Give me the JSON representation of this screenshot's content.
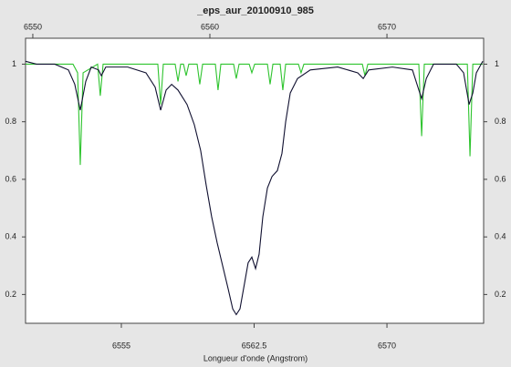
{
  "chart_data": {
    "type": "line",
    "title": "_eps_aur_20100910_985",
    "x_label": "Longueur d'onde (Angstrom)",
    "xlim": [
      6549.59,
      6575.46
    ],
    "ylim": [
      0.1,
      1.09
    ],
    "xticks": [
      6555,
      6562.5,
      6570
    ],
    "x2ticks": [
      6550,
      6560,
      6570
    ],
    "yticks": [
      0.2,
      0.4,
      0.6,
      0.8,
      1
    ],
    "y2lim": [
      0.1,
      1.09
    ],
    "y2ticks": [
      0.2,
      0.4,
      0.6,
      0.8,
      1
    ],
    "series": [
      {
        "color": "#101030",
        "x": [
          6549.59,
          6550.21,
          6551.24,
          6552.01,
          6552.37,
          6552.68,
          6552.99,
          6553.3,
          6553.71,
          6553.87,
          6554.12,
          6555.36,
          6556.39,
          6556.91,
          6557.22,
          6557.53,
          6557.84,
          6558.2,
          6558.71,
          6559.12,
          6559.48,
          6559.79,
          6560.1,
          6560.41,
          6560.72,
          6561.03,
          6561.29,
          6561.49,
          6561.7,
          6561.96,
          6562.16,
          6562.37,
          6562.58,
          6562.78,
          6562.99,
          6563.25,
          6563.51,
          6563.81,
          6564.07,
          6564.28,
          6564.54,
          6564.95,
          6565.67,
          6567.22,
          6568.35,
          6568.66,
          6568.97,
          6570.31,
          6571.44,
          6571.75,
          6571.96,
          6572.22,
          6572.63,
          6573.92,
          6574.33,
          6574.64,
          6574.85,
          6575.05,
          6575.41
        ],
        "values": [
          1.01,
          1.0,
          1.0,
          0.98,
          0.93,
          0.84,
          0.94,
          0.99,
          0.98,
          0.96,
          0.99,
          0.99,
          0.97,
          0.92,
          0.84,
          0.91,
          0.93,
          0.91,
          0.86,
          0.79,
          0.7,
          0.58,
          0.47,
          0.38,
          0.3,
          0.22,
          0.15,
          0.13,
          0.15,
          0.24,
          0.31,
          0.33,
          0.29,
          0.34,
          0.47,
          0.57,
          0.61,
          0.63,
          0.69,
          0.8,
          0.9,
          0.95,
          0.98,
          0.99,
          0.97,
          0.95,
          0.98,
          0.99,
          0.98,
          0.92,
          0.88,
          0.95,
          1.0,
          1.0,
          0.97,
          0.86,
          0.9,
          0.97,
          1.01
        ]
      },
      {
        "color": "#2fc42f",
        "x": [
          6549.59,
          6552.27,
          6552.53,
          6552.68,
          6552.84,
          6553.66,
          6553.81,
          6553.97,
          6557.06,
          6557.22,
          6557.37,
          6558.04,
          6558.2,
          6558.35,
          6558.51,
          6558.66,
          6558.81,
          6559.28,
          6559.43,
          6559.59,
          6560.31,
          6560.46,
          6560.62,
          6561.34,
          6561.49,
          6561.65,
          6562.22,
          6562.37,
          6562.53,
          6563.25,
          6563.4,
          6563.56,
          6563.97,
          6564.12,
          6564.28,
          6565.0,
          6565.15,
          6565.31,
          6568.61,
          6568.76,
          6568.92,
          6571.8,
          6571.96,
          6572.11,
          6574.54,
          6574.69,
          6574.85,
          6575.41
        ],
        "values": [
          1.0,
          1.0,
          0.97,
          0.65,
          0.97,
          1.0,
          0.89,
          1.0,
          1.0,
          0.86,
          1.0,
          1.0,
          0.94,
          1.0,
          1.0,
          0.96,
          1.0,
          1.0,
          0.93,
          1.0,
          1.0,
          0.91,
          1.0,
          1.0,
          0.95,
          1.0,
          1.0,
          0.97,
          1.0,
          1.0,
          0.93,
          1.0,
          1.0,
          0.91,
          1.0,
          1.0,
          0.97,
          1.0,
          1.0,
          0.96,
          1.0,
          1.0,
          0.75,
          1.0,
          1.0,
          0.68,
          1.0,
          1.0
        ]
      }
    ]
  }
}
